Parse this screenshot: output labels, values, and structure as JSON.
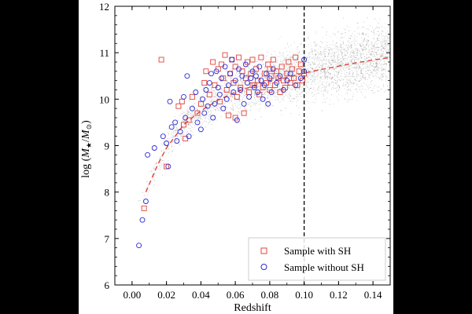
{
  "chart_data": {
    "type": "scatter",
    "xlabel": "Redshift",
    "ylabel_parts": [
      "log (",
      "M",
      "★",
      "/",
      "M",
      "⊙",
      ")"
    ],
    "xlim": [
      -0.01,
      0.15
    ],
    "ylim": [
      6,
      12
    ],
    "xticks": [
      0.0,
      0.02,
      0.04,
      0.06,
      0.08,
      0.1,
      0.12,
      0.14
    ],
    "xtick_labels": [
      "0.00",
      "0.02",
      "0.04",
      "0.06",
      "0.08",
      "0.10",
      "0.12",
      "0.14"
    ],
    "yticks": [
      6,
      7,
      8,
      9,
      10,
      11,
      12
    ],
    "ytick_labels": [
      "6",
      "7",
      "8",
      "9",
      "10",
      "11",
      "12"
    ],
    "vline_x": 0.1,
    "legend_position": "bottom-right",
    "colors": {
      "sh": "#e0443a",
      "nosh": "#2a2ad6",
      "vline": "#000000",
      "background_cloud": "#6e6e6e",
      "figure_bg": "#000000",
      "plot_bg": "#ffffff"
    },
    "series": [
      {
        "name": "Sample with SH",
        "marker": "square",
        "points": [
          [
            0.007,
            7.65
          ],
          [
            0.017,
            10.85
          ],
          [
            0.02,
            8.55
          ],
          [
            0.027,
            9.85
          ],
          [
            0.029,
            9.95
          ],
          [
            0.03,
            9.45
          ],
          [
            0.031,
            9.15
          ],
          [
            0.033,
            9.55
          ],
          [
            0.035,
            10.05
          ],
          [
            0.038,
            9.7
          ],
          [
            0.04,
            9.9
          ],
          [
            0.042,
            10.35
          ],
          [
            0.043,
            10.6
          ],
          [
            0.045,
            10.1
          ],
          [
            0.047,
            10.8
          ],
          [
            0.048,
            10.3
          ],
          [
            0.05,
            10.65
          ],
          [
            0.051,
            9.95
          ],
          [
            0.052,
            10.75
          ],
          [
            0.053,
            10.45
          ],
          [
            0.054,
            10.95
          ],
          [
            0.055,
            10.2
          ],
          [
            0.056,
            9.65
          ],
          [
            0.057,
            10.55
          ],
          [
            0.058,
            10.85
          ],
          [
            0.059,
            10.35
          ],
          [
            0.06,
            9.6
          ],
          [
            0.06,
            10.7
          ],
          [
            0.061,
            10.05
          ],
          [
            0.062,
            10.9
          ],
          [
            0.063,
            10.25
          ],
          [
            0.064,
            10.6
          ],
          [
            0.065,
            9.7
          ],
          [
            0.066,
            10.45
          ],
          [
            0.067,
            10.8
          ],
          [
            0.068,
            10.15
          ],
          [
            0.069,
            10.55
          ],
          [
            0.07,
            10.85
          ],
          [
            0.071,
            10.3
          ],
          [
            0.072,
            10.65
          ],
          [
            0.073,
            10.4
          ],
          [
            0.074,
            10.1
          ],
          [
            0.075,
            10.9
          ],
          [
            0.076,
            10.25
          ],
          [
            0.077,
            10.55
          ],
          [
            0.078,
            10.35
          ],
          [
            0.079,
            10.75
          ],
          [
            0.08,
            10.2
          ],
          [
            0.081,
            10.5
          ],
          [
            0.082,
            10.85
          ],
          [
            0.083,
            10.3
          ],
          [
            0.084,
            10.6
          ],
          [
            0.085,
            10.45
          ],
          [
            0.086,
            10.15
          ],
          [
            0.087,
            10.7
          ],
          [
            0.088,
            10.4
          ],
          [
            0.089,
            10.25
          ],
          [
            0.09,
            10.55
          ],
          [
            0.091,
            10.8
          ],
          [
            0.092,
            10.35
          ],
          [
            0.093,
            10.65
          ],
          [
            0.094,
            10.45
          ],
          [
            0.095,
            10.9
          ],
          [
            0.096,
            10.3
          ],
          [
            0.097,
            10.6
          ],
          [
            0.098,
            10.75
          ],
          [
            0.099,
            10.4
          ],
          [
            0.1,
            10.55
          ],
          [
            0.08,
            10.65
          ],
          [
            0.07,
            10.3
          ]
        ]
      },
      {
        "name": "Sample without SH",
        "marker": "circle",
        "points": [
          [
            0.004,
            6.85
          ],
          [
            0.006,
            7.4
          ],
          [
            0.008,
            7.8
          ],
          [
            0.009,
            8.8
          ],
          [
            0.013,
            8.95
          ],
          [
            0.018,
            9.2
          ],
          [
            0.02,
            9.05
          ],
          [
            0.021,
            8.55
          ],
          [
            0.022,
            9.95
          ],
          [
            0.023,
            9.4
          ],
          [
            0.025,
            9.5
          ],
          [
            0.026,
            9.1
          ],
          [
            0.028,
            9.3
          ],
          [
            0.03,
            10.05
          ],
          [
            0.031,
            9.6
          ],
          [
            0.032,
            10.5
          ],
          [
            0.033,
            9.2
          ],
          [
            0.035,
            9.8
          ],
          [
            0.037,
            10.15
          ],
          [
            0.038,
            9.5
          ],
          [
            0.04,
            9.35
          ],
          [
            0.041,
            10.0
          ],
          [
            0.042,
            9.7
          ],
          [
            0.043,
            10.2
          ],
          [
            0.044,
            9.85
          ],
          [
            0.045,
            10.35
          ],
          [
            0.046,
            10.55
          ],
          [
            0.047,
            9.6
          ],
          [
            0.048,
            9.9
          ],
          [
            0.049,
            10.6
          ],
          [
            0.05,
            10.25
          ],
          [
            0.051,
            10.1
          ],
          [
            0.052,
            10.45
          ],
          [
            0.053,
            9.8
          ],
          [
            0.054,
            10.7
          ],
          [
            0.055,
            10.0
          ],
          [
            0.056,
            10.3
          ],
          [
            0.057,
            10.55
          ],
          [
            0.058,
            10.85
          ],
          [
            0.059,
            10.15
          ],
          [
            0.06,
            10.4
          ],
          [
            0.061,
            9.55
          ],
          [
            0.062,
            10.65
          ],
          [
            0.063,
            10.2
          ],
          [
            0.064,
            10.5
          ],
          [
            0.065,
            9.9
          ],
          [
            0.066,
            10.75
          ],
          [
            0.067,
            10.35
          ],
          [
            0.068,
            10.05
          ],
          [
            0.069,
            10.45
          ],
          [
            0.07,
            10.6
          ],
          [
            0.071,
            10.25
          ],
          [
            0.072,
            10.5
          ],
          [
            0.073,
            10.15
          ],
          [
            0.074,
            10.7
          ],
          [
            0.075,
            10.4
          ],
          [
            0.076,
            10.0
          ],
          [
            0.077,
            10.3
          ],
          [
            0.078,
            10.55
          ],
          [
            0.079,
            9.9
          ],
          [
            0.08,
            10.45
          ],
          [
            0.081,
            10.15
          ],
          [
            0.082,
            10.65
          ],
          [
            0.084,
            10.35
          ],
          [
            0.086,
            10.5
          ],
          [
            0.088,
            10.2
          ],
          [
            0.09,
            10.4
          ],
          [
            0.092,
            10.55
          ],
          [
            0.095,
            10.3
          ],
          [
            0.098,
            10.45
          ],
          [
            0.1,
            10.85
          ],
          [
            0.1,
            10.6
          ]
        ]
      }
    ],
    "fit_line": {
      "style": "dashed",
      "points": [
        [
          0.008,
          8.0
        ],
        [
          0.015,
          8.6
        ],
        [
          0.02,
          8.95
        ],
        [
          0.025,
          9.2
        ],
        [
          0.03,
          9.45
        ],
        [
          0.04,
          9.75
        ],
        [
          0.05,
          9.98
        ],
        [
          0.06,
          10.15
        ],
        [
          0.07,
          10.28
        ],
        [
          0.08,
          10.38
        ],
        [
          0.09,
          10.47
        ],
        [
          0.1,
          10.56
        ],
        [
          0.11,
          10.64
        ],
        [
          0.12,
          10.71
        ],
        [
          0.13,
          10.78
        ],
        [
          0.14,
          10.84
        ],
        [
          0.15,
          10.9
        ]
      ]
    }
  }
}
